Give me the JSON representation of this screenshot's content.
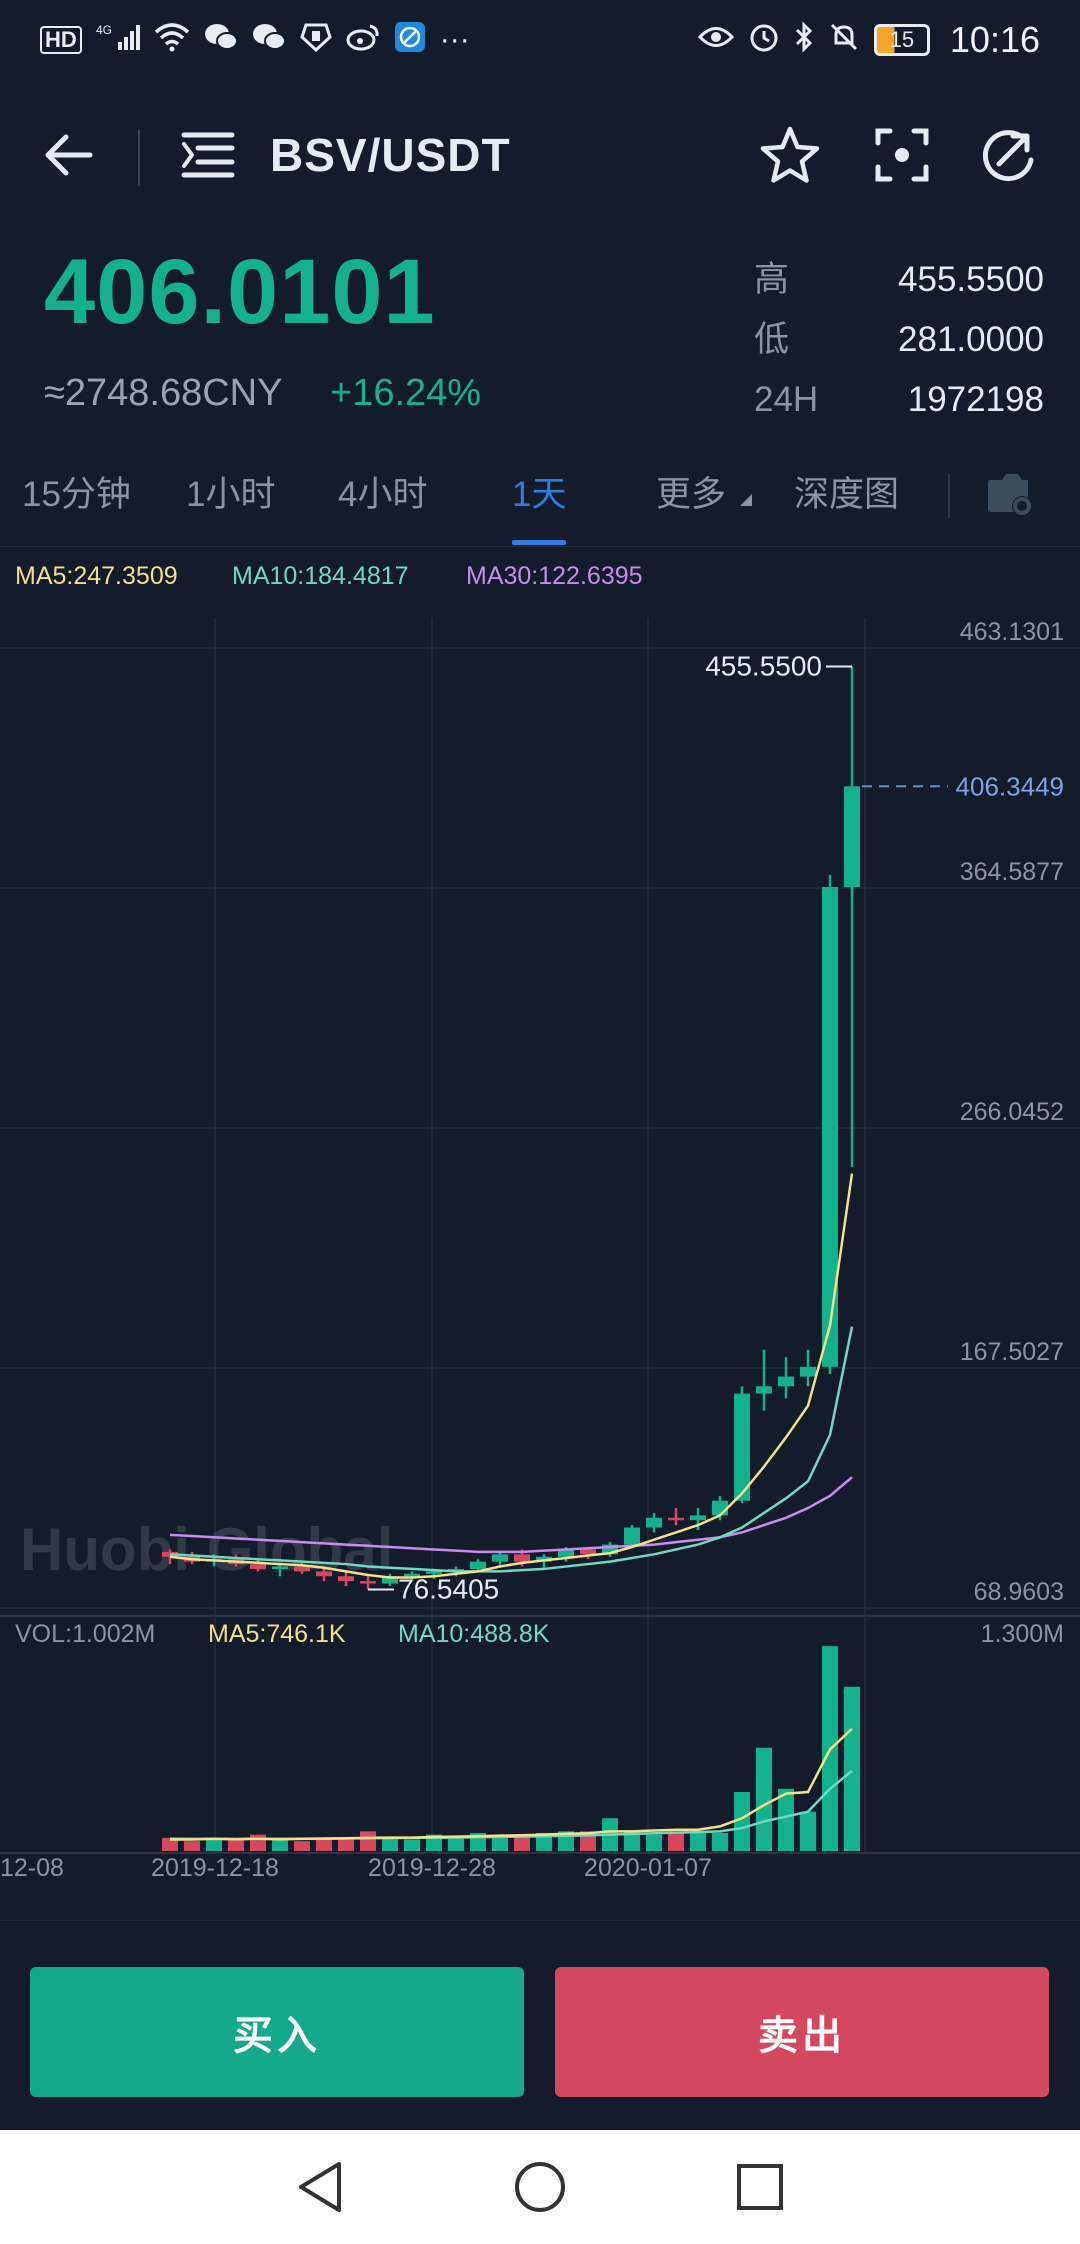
{
  "status_bar": {
    "left_icons": [
      "hd-icon",
      "4g-signal-icon",
      "wifi-icon",
      "wechat-icon",
      "wechat-icon",
      "hand-icon",
      "weibo-icon",
      "browser-icon"
    ],
    "more": "···",
    "battery": "15",
    "time": "10:16"
  },
  "header": {
    "pair": "BSV/USDT"
  },
  "ticker": {
    "price": "406.0101",
    "cny": "≈2748.68CNY",
    "change": "+16.24%",
    "high_label": "高",
    "high": "455.5500",
    "low_label": "低",
    "low": "281.0000",
    "vol_label": "24H",
    "vol": "1972198"
  },
  "tabs": [
    {
      "label": "15分钟"
    },
    {
      "label": "1小时"
    },
    {
      "label": "4小时"
    },
    {
      "label": "1天"
    },
    {
      "label": "更多"
    },
    {
      "label": "深度图"
    }
  ],
  "chart": {
    "ma5": "MA5:247.3509",
    "ma10": "MA10:184.4817",
    "ma30": "MA30:122.6395",
    "y_ticks": [
      "463.1301",
      "364.5877",
      "266.0452",
      "167.5027",
      "68.9603"
    ],
    "current_price_tag": "406.3449",
    "high_mark": "455.5500",
    "low_mark": "76.5405",
    "vol_label": "VOL:1.002M",
    "vol_ma5": "MA5:746.1K",
    "vol_ma10": "MA10:488.8K",
    "vol_max": "1.300M",
    "x_ticks": [
      "12-08",
      "2019-12-18",
      "2019-12-28",
      "2020-01-07"
    ],
    "watermark": "Huobi Global"
  },
  "chart_data": {
    "type": "candlestick",
    "y_range": [
      68.9603,
      463.1301
    ],
    "x_ticks": [
      "12-08",
      "2019-12-18",
      "2019-12-28",
      "2020-01-07"
    ],
    "candles": [
      [
        92,
        93,
        87,
        90
      ],
      [
        90,
        92,
        87,
        88
      ],
      [
        88,
        91,
        86,
        89
      ],
      [
        89,
        91,
        86,
        87
      ],
      [
        87,
        89,
        84,
        85
      ],
      [
        85,
        87,
        82,
        86
      ],
      [
        86,
        88,
        83,
        84
      ],
      [
        84,
        86,
        80,
        82
      ],
      [
        82,
        84,
        78,
        80
      ],
      [
        80,
        82,
        76.5405,
        79
      ],
      [
        79,
        83,
        78,
        82
      ],
      [
        82,
        84,
        80,
        83
      ],
      [
        83,
        85,
        81,
        84
      ],
      [
        84,
        86,
        82,
        85
      ],
      [
        85,
        89,
        84,
        88
      ],
      [
        88,
        92,
        86,
        91
      ],
      [
        91,
        93,
        86,
        88
      ],
      [
        88,
        91,
        85,
        90
      ],
      [
        90,
        94,
        88,
        93
      ],
      [
        93,
        94,
        89,
        91
      ],
      [
        91,
        96,
        90,
        95
      ],
      [
        95,
        103,
        94,
        102
      ],
      [
        102,
        108,
        100,
        106
      ],
      [
        106,
        110,
        103,
        105
      ],
      [
        105,
        110,
        101,
        107
      ],
      [
        107,
        115,
        105,
        113
      ],
      [
        113,
        160,
        112,
        157
      ],
      [
        157,
        175,
        150,
        160
      ],
      [
        160,
        172,
        155,
        164
      ],
      [
        164,
        175,
        160,
        168
      ],
      [
        168,
        370,
        165,
        365
      ],
      [
        365,
        455.55,
        250,
        406.3449
      ]
    ],
    "ma5": [
      90,
      89,
      88.5,
      88,
      87.5,
      87,
      86.5,
      85.5,
      84,
      82.5,
      81.5,
      81.5,
      82,
      83,
      84,
      86,
      87.5,
      88.5,
      89.5,
      90.5,
      91.5,
      94,
      97,
      100,
      103,
      107,
      116,
      127,
      139,
      152,
      185,
      247.3509
    ],
    "ma10": [
      91,
      90.5,
      90,
      89.5,
      89,
      88.5,
      88,
      87.5,
      87,
      86,
      85.5,
      85,
      84.5,
      84,
      84,
      84,
      84.5,
      85,
      86,
      87,
      88,
      89.5,
      91,
      93,
      95,
      98,
      102,
      108,
      114,
      121,
      140,
      184.4817
    ],
    "ma30": [
      99,
      98.5,
      98,
      97.5,
      97,
      96.5,
      96,
      95.5,
      95,
      94.5,
      94,
      93.5,
      93,
      92.5,
      92,
      92,
      92,
      92.5,
      93,
      93.5,
      94,
      94.5,
      95,
      96,
      97,
      98,
      100,
      103,
      106,
      110,
      115,
      122.6395
    ],
    "volume_range": [
      0,
      1.3
    ],
    "volumes": [
      0.08,
      0.06,
      0.08,
      0.07,
      0.1,
      0.07,
      0.06,
      0.07,
      0.08,
      0.12,
      0.08,
      0.07,
      0.1,
      0.09,
      0.11,
      0.1,
      0.1,
      0.11,
      0.12,
      0.12,
      0.2,
      0.12,
      0.1,
      0.12,
      0.11,
      0.11,
      0.36,
      0.63,
      0.38,
      0.24,
      1.25,
      1.002
    ],
    "vol_ma5": [
      0.07,
      0.07,
      0.075,
      0.072,
      0.075,
      0.072,
      0.075,
      0.076,
      0.078,
      0.08,
      0.082,
      0.082,
      0.086,
      0.088,
      0.09,
      0.094,
      0.096,
      0.1,
      0.105,
      0.108,
      0.12,
      0.12,
      0.125,
      0.13,
      0.13,
      0.15,
      0.2,
      0.28,
      0.35,
      0.36,
      0.62,
      0.7461
    ],
    "vol_ma10": [
      0.075,
      0.074,
      0.074,
      0.073,
      0.074,
      0.074,
      0.074,
      0.075,
      0.076,
      0.078,
      0.079,
      0.08,
      0.081,
      0.082,
      0.084,
      0.086,
      0.088,
      0.09,
      0.093,
      0.095,
      0.1,
      0.104,
      0.108,
      0.112,
      0.115,
      0.12,
      0.14,
      0.18,
      0.21,
      0.24,
      0.38,
      0.4888
    ]
  },
  "actions": {
    "buy": "买入",
    "sell": "卖出"
  },
  "colors": {
    "up": "#13b28c",
    "down": "#d4485f",
    "ma5": "#f2e08a",
    "ma10": "#6fd9c0",
    "ma30": "#c58df0",
    "accent": "#2f7de0"
  }
}
